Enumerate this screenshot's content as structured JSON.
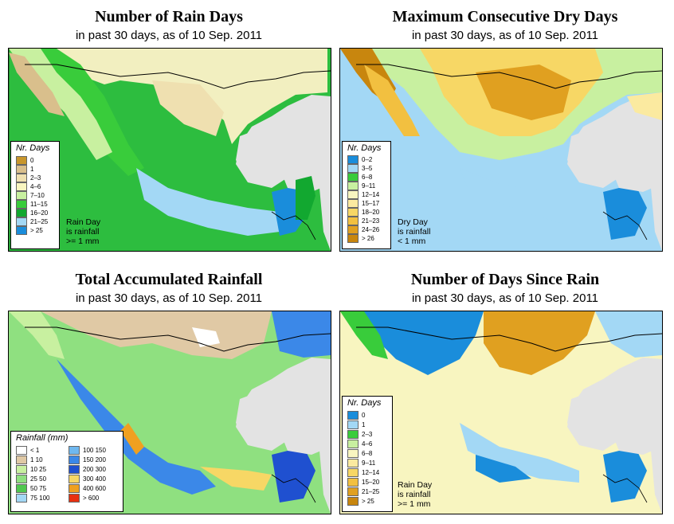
{
  "panels": [
    {
      "title": "Number of Rain Days",
      "subtitle": "in past 30 days, as of  10 Sep. 2011",
      "legend_title": "Nr. Days",
      "legend": [
        {
          "label": "0",
          "color": "#c8962c"
        },
        {
          "label": "1",
          "color": "#d9bf8c"
        },
        {
          "label": "2–3",
          "color": "#efe0b0"
        },
        {
          "label": "4–6",
          "color": "#f8f5c0"
        },
        {
          "label": "7–10",
          "color": "#c8f0a0"
        },
        {
          "label": "11–15",
          "color": "#39cc3b"
        },
        {
          "label": "16–20",
          "color": "#12a830"
        },
        {
          "label": "21–25",
          "color": "#a3d8f5"
        },
        {
          "label": "> 25",
          "color": "#1a8ddb"
        }
      ],
      "note": [
        "Rain Day",
        "is rainfall",
        ">= 1 mm"
      ]
    },
    {
      "title": "Maximum Consecutive Dry Days",
      "subtitle": "in past 30 days, as of  10 Sep. 2011",
      "legend_title": "Nr. Days",
      "legend": [
        {
          "label": "0–2",
          "color": "#1a8ddb"
        },
        {
          "label": "3–5",
          "color": "#a3d8f5"
        },
        {
          "label": "6–8",
          "color": "#39cc3b"
        },
        {
          "label": "9–11",
          "color": "#c8f0a0"
        },
        {
          "label": "12–14",
          "color": "#f8f5c0"
        },
        {
          "label": "15–17",
          "color": "#fbeaa0"
        },
        {
          "label": "18–20",
          "color": "#f7d765"
        },
        {
          "label": "21–23",
          "color": "#f2c040"
        },
        {
          "label": "24–26",
          "color": "#e0a020"
        },
        {
          "label": "> 26",
          "color": "#c8860e"
        }
      ],
      "note": [
        "Dry Day",
        "is rainfall",
        "< 1 mm"
      ]
    },
    {
      "title": "Total Accumulated Rainfall",
      "subtitle": "in past 30 days, as of  10 Sep. 2011",
      "legend_title": "Rainfall (mm)",
      "legend_left": [
        {
          "label": "< 1",
          "color": "#ffffff"
        },
        {
          "label": "1   10",
          "color": "#e0c9a5"
        },
        {
          "label": "10   25",
          "color": "#c8f0a0"
        },
        {
          "label": "25   50",
          "color": "#8fe080"
        },
        {
          "label": "50   75",
          "color": "#50c850"
        },
        {
          "label": "75   100",
          "color": "#a3d8f5"
        }
      ],
      "legend_right": [
        {
          "label": "100   150",
          "color": "#6fb8ef"
        },
        {
          "label": "150   200",
          "color": "#3b88e8"
        },
        {
          "label": "200   300",
          "color": "#1f50d0"
        },
        {
          "label": "300   400",
          "color": "#f7d765"
        },
        {
          "label": "400   600",
          "color": "#f0a020"
        },
        {
          "label": "> 600",
          "color": "#e83010"
        }
      ]
    },
    {
      "title": "Number of Days Since Rain",
      "subtitle": "in past 30 days, as of  10 Sep. 2011",
      "legend_title": "Nr. Days",
      "legend": [
        {
          "label": "0",
          "color": "#1a8ddb"
        },
        {
          "label": "1",
          "color": "#a3d8f5"
        },
        {
          "label": "2–3",
          "color": "#39cc3b"
        },
        {
          "label": "4–6",
          "color": "#c8f0a0"
        },
        {
          "label": "6–8",
          "color": "#f8f5c0"
        },
        {
          "label": "9–11",
          "color": "#fbeaa0"
        },
        {
          "label": "12–14",
          "color": "#f7d765"
        },
        {
          "label": "15–20",
          "color": "#f2c040"
        },
        {
          "label": "21–25",
          "color": "#e0a020"
        },
        {
          "label": "> 25",
          "color": "#c8860e"
        }
      ],
      "note": [
        "Rain Day",
        "is rainfall",
        ">= 1 mm"
      ]
    }
  ]
}
